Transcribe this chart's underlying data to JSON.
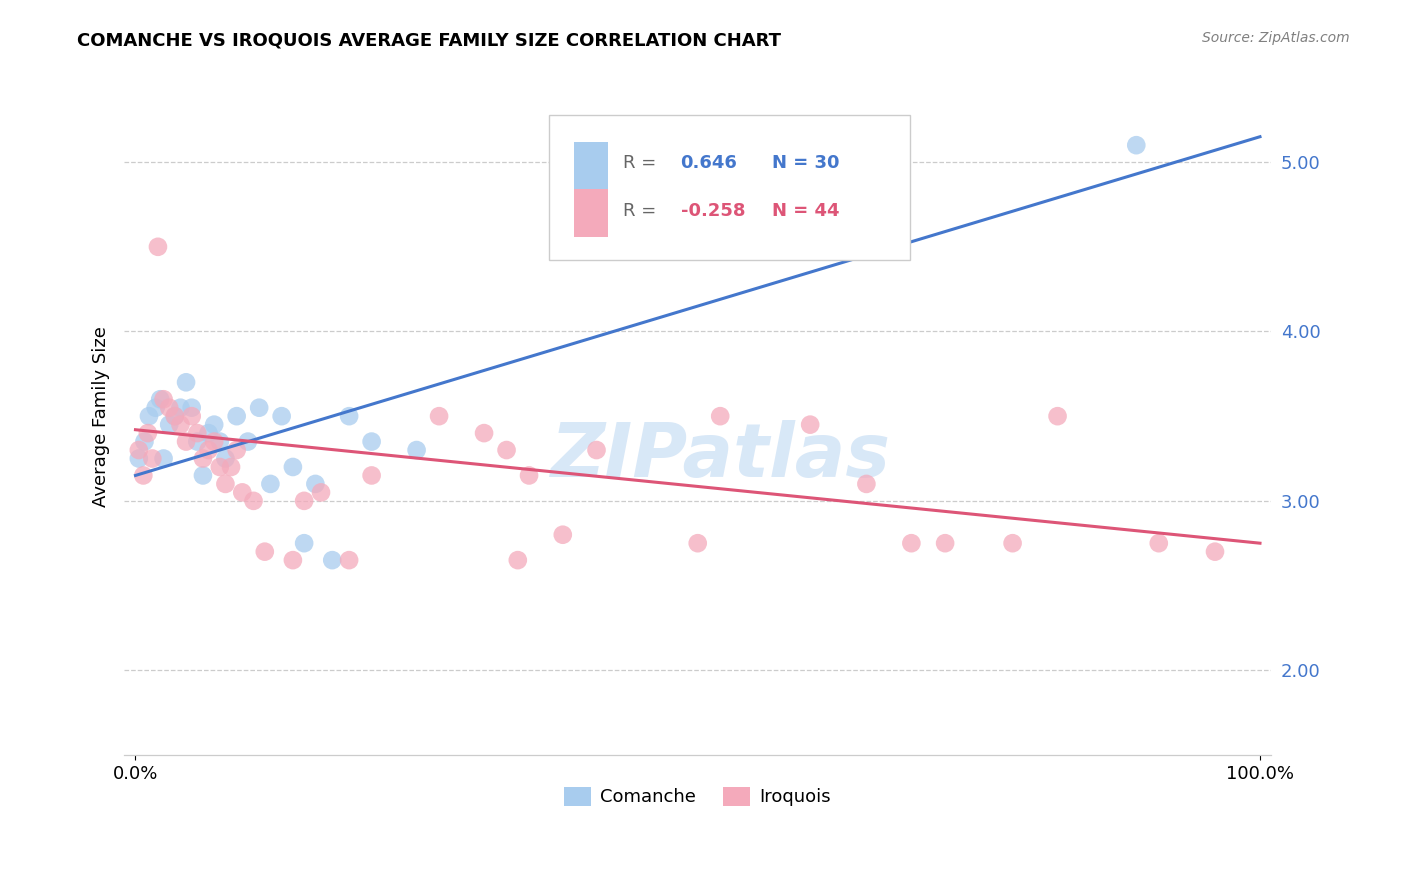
{
  "title": "COMANCHE VS IROQUOIS AVERAGE FAMILY SIZE CORRELATION CHART",
  "source": "Source: ZipAtlas.com",
  "ylabel": "Average Family Size",
  "right_yticks": [
    2.0,
    3.0,
    4.0,
    5.0
  ],
  "legend_label_blue": "Comanche",
  "legend_label_pink": "Iroquois",
  "blue_color": "#A8CCEE",
  "pink_color": "#F4AABB",
  "blue_line_color": "#4477CC",
  "pink_line_color": "#DD5577",
  "watermark": "ZIPatlas",
  "blue_line_x0": 0,
  "blue_line_y0": 3.15,
  "blue_line_x1": 100,
  "blue_line_y1": 5.15,
  "pink_line_x0": 0,
  "pink_line_y0": 3.42,
  "pink_line_x1": 100,
  "pink_line_y1": 2.75,
  "comanche_x": [
    0.3,
    0.8,
    1.2,
    1.8,
    2.2,
    2.5,
    3.0,
    3.5,
    4.0,
    4.5,
    5.0,
    5.5,
    6.0,
    6.5,
    7.0,
    7.5,
    8.0,
    9.0,
    10.0,
    11.0,
    12.0,
    13.0,
    14.0,
    15.0,
    16.0,
    17.5,
    19.0,
    21.0,
    25.0,
    89.0
  ],
  "comanche_y": [
    3.25,
    3.35,
    3.5,
    3.55,
    3.6,
    3.25,
    3.45,
    3.5,
    3.55,
    3.7,
    3.55,
    3.35,
    3.15,
    3.4,
    3.45,
    3.35,
    3.25,
    3.5,
    3.35,
    3.55,
    3.1,
    3.5,
    3.2,
    2.75,
    3.1,
    2.65,
    3.5,
    3.35,
    3.3,
    5.1
  ],
  "iroquois_x": [
    0.3,
    0.7,
    1.1,
    1.5,
    2.0,
    2.5,
    3.0,
    3.5,
    4.0,
    4.5,
    5.0,
    5.5,
    6.0,
    6.5,
    7.0,
    7.5,
    8.0,
    8.5,
    9.0,
    9.5,
    10.5,
    11.5,
    14.0,
    15.0,
    16.5,
    19.0,
    21.0,
    27.0,
    31.0,
    33.0,
    35.0,
    38.0,
    41.0,
    50.0,
    52.0,
    60.0,
    65.0,
    69.0,
    72.0,
    78.0,
    82.0,
    91.0,
    96.0,
    34.0
  ],
  "iroquois_y": [
    3.3,
    3.15,
    3.4,
    3.25,
    4.5,
    3.6,
    3.55,
    3.5,
    3.45,
    3.35,
    3.5,
    3.4,
    3.25,
    3.3,
    3.35,
    3.2,
    3.1,
    3.2,
    3.3,
    3.05,
    3.0,
    2.7,
    2.65,
    3.0,
    3.05,
    2.65,
    3.15,
    3.5,
    3.4,
    3.3,
    3.15,
    2.8,
    3.3,
    2.75,
    3.5,
    3.45,
    3.1,
    2.75,
    2.75,
    2.75,
    3.5,
    2.75,
    2.7,
    2.65
  ],
  "xlim": [
    -1,
    101
  ],
  "ylim": [
    1.5,
    5.5
  ]
}
